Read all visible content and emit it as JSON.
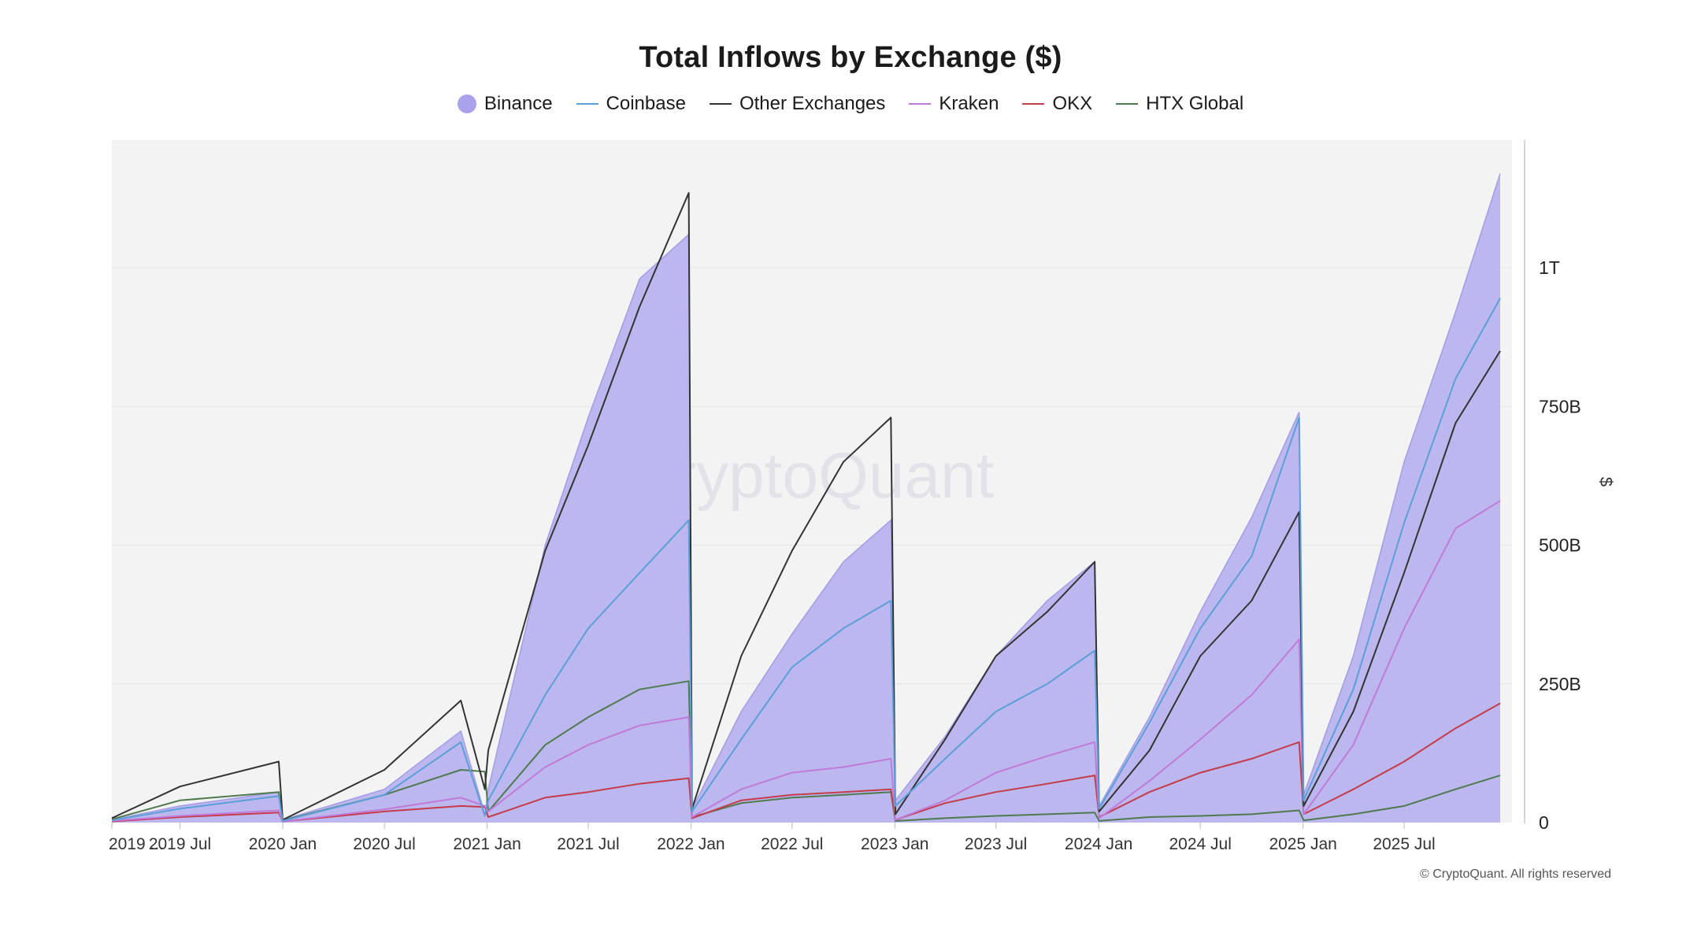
{
  "chart_data": {
    "type": "area",
    "title": "Total Inflows by Exchange ($)",
    "ylabel": "$",
    "ylim": [
      0,
      1230000000000
    ],
    "y_ticks": [
      {
        "value": 0,
        "label": "0"
      },
      {
        "value": 250000000000,
        "label": "250B"
      },
      {
        "value": 500000000000,
        "label": "500B"
      },
      {
        "value": 750000000000,
        "label": "750B"
      },
      {
        "value": 1000000000000,
        "label": "1T"
      }
    ],
    "x_range": [
      "2019-03-01",
      "2025-12-20"
    ],
    "x_ticks": [
      {
        "date": "2019-03-01",
        "label": "2019 ..."
      },
      {
        "date": "2019-07-01",
        "label": "2019 Jul"
      },
      {
        "date": "2020-01-01",
        "label": "2020 Jan"
      },
      {
        "date": "2020-07-01",
        "label": "2020 Jul"
      },
      {
        "date": "2021-01-01",
        "label": "2021 Jan"
      },
      {
        "date": "2021-07-01",
        "label": "2021 Jul"
      },
      {
        "date": "2022-01-01",
        "label": "2022 Jan"
      },
      {
        "date": "2022-07-01",
        "label": "2022 Jul"
      },
      {
        "date": "2023-01-01",
        "label": "2023 Jan"
      },
      {
        "date": "2023-07-01",
        "label": "2023 Jul"
      },
      {
        "date": "2024-01-01",
        "label": "2024 Jan"
      },
      {
        "date": "2024-07-01",
        "label": "2024 Jul"
      },
      {
        "date": "2025-01-01",
        "label": "2025 Jan"
      },
      {
        "date": "2025-07-01",
        "label": "2025 Jul"
      }
    ],
    "x": [
      "2019-03-01",
      "2019-07-01",
      "2019-12-25",
      "2020-01-01",
      "2020-07-01",
      "2020-11-15",
      "2020-12-28",
      "2021-01-03",
      "2021-04-15",
      "2021-07-01",
      "2021-10-01",
      "2021-12-28",
      "2022-01-03",
      "2022-04-01",
      "2022-07-01",
      "2022-10-01",
      "2022-12-25",
      "2023-01-02",
      "2023-04-01",
      "2023-07-01",
      "2023-10-01",
      "2023-12-25",
      "2024-01-02",
      "2024-04-01",
      "2024-07-01",
      "2024-10-01",
      "2024-12-25",
      "2025-01-02",
      "2025-04-01",
      "2025-07-01",
      "2025-10-01",
      "2025-12-20"
    ],
    "series": [
      {
        "name": "Binance",
        "style": "area",
        "color": "#b9b3ee",
        "values": [
          5,
          30,
          55,
          5,
          60,
          165,
          15,
          60,
          500,
          730,
          980,
          1060,
          25,
          200,
          340,
          470,
          545,
          40,
          155,
          300,
          400,
          470,
          30,
          190,
          380,
          550,
          740,
          50,
          300,
          650,
          920,
          1170
        ]
      },
      {
        "name": "Coinbase",
        "style": "line",
        "color": "#5a9fd8",
        "values": [
          4,
          25,
          48,
          3,
          50,
          145,
          12,
          40,
          230,
          350,
          450,
          545,
          20,
          150,
          280,
          350,
          400,
          30,
          115,
          200,
          250,
          310,
          25,
          180,
          350,
          480,
          730,
          40,
          240,
          540,
          800,
          945
        ]
      },
      {
        "name": "Other Exchanges",
        "style": "line",
        "color": "#333333",
        "values": [
          8,
          65,
          110,
          5,
          95,
          220,
          60,
          130,
          490,
          680,
          930,
          1135,
          25,
          300,
          490,
          650,
          730,
          15,
          150,
          300,
          380,
          470,
          20,
          130,
          300,
          400,
          560,
          30,
          200,
          450,
          720,
          850
        ]
      },
      {
        "name": "Kraken",
        "style": "line",
        "color": "#c07ad8",
        "values": [
          3,
          12,
          22,
          2,
          24,
          45,
          30,
          20,
          100,
          140,
          175,
          190,
          10,
          60,
          90,
          100,
          115,
          5,
          40,
          90,
          120,
          145,
          8,
          75,
          150,
          230,
          330,
          15,
          140,
          350,
          530,
          580
        ]
      },
      {
        "name": "OKX",
        "style": "line",
        "color": "#c43b4a",
        "values": [
          2,
          10,
          18,
          2,
          20,
          30,
          28,
          10,
          45,
          55,
          70,
          80,
          8,
          40,
          50,
          55,
          60,
          5,
          35,
          55,
          70,
          85,
          10,
          55,
          90,
          115,
          145,
          15,
          60,
          110,
          170,
          215
        ]
      },
      {
        "name": "HTX Global",
        "style": "line",
        "color": "#4f7a4f",
        "values": [
          6,
          40,
          55,
          4,
          50,
          95,
          92,
          20,
          140,
          190,
          240,
          255,
          10,
          35,
          45,
          50,
          55,
          3,
          8,
          12,
          15,
          18,
          3,
          10,
          12,
          15,
          22,
          4,
          15,
          30,
          60,
          85
        ]
      }
    ],
    "watermark": "CryptoQuant",
    "copyright": "© CryptoQuant. All rights reserved",
    "grid": true,
    "legend": "top-center"
  }
}
